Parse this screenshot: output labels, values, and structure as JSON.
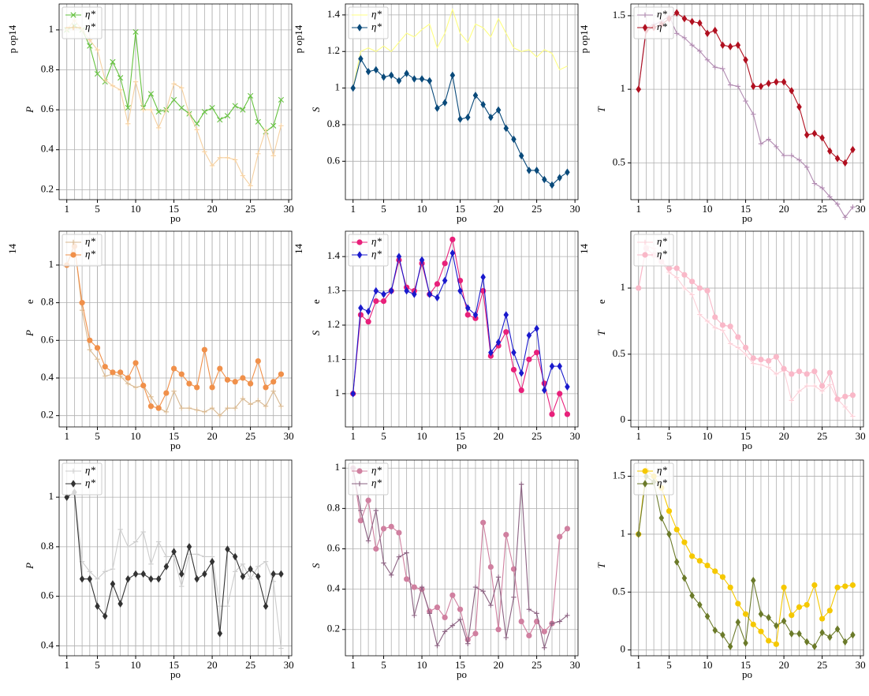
{
  "chart_data": [
    {
      "type": "line",
      "xlabel": "po",
      "ylabel": [
        "P",
        "p op14"
      ],
      "legend": "upper left",
      "grid": true,
      "x": [
        1,
        2,
        3,
        4,
        5,
        6,
        7,
        8,
        9,
        10,
        11,
        12,
        13,
        14,
        15,
        16,
        17,
        18,
        19,
        20,
        21,
        22,
        23,
        24,
        25,
        26,
        27,
        28,
        29
      ],
      "xlim": [
        0,
        30.4
      ],
      "xticks": [
        1,
        5,
        10,
        15,
        20,
        25,
        30
      ],
      "ylim": [
        0.15,
        1.13
      ],
      "yticks": [
        0.2,
        0.4,
        0.6,
        0.8,
        1
      ],
      "series": [
        {
          "name": "η*",
          "color": "#66c240",
          "marker": "x",
          "values": [
            1.0,
            1.02,
            1.0,
            0.92,
            0.78,
            0.74,
            0.84,
            0.76,
            0.61,
            0.99,
            0.61,
            0.68,
            0.59,
            0.6,
            0.65,
            0.61,
            0.58,
            0.53,
            0.59,
            0.61,
            0.55,
            0.57,
            0.62,
            0.6,
            0.67,
            0.54,
            0.49,
            0.52,
            0.65
          ]
        },
        {
          "name": "η*",
          "color": "#f5d0a0",
          "marker": "+",
          "values": [
            1.0,
            1.05,
            1.0,
            0.95,
            0.9,
            0.75,
            0.72,
            0.7,
            0.53,
            0.74,
            0.6,
            0.6,
            0.51,
            0.6,
            0.73,
            0.71,
            0.58,
            0.5,
            0.39,
            0.32,
            0.36,
            0.36,
            0.35,
            0.27,
            0.22,
            0.38,
            0.5,
            0.37,
            0.52
          ]
        }
      ]
    },
    {
      "type": "line",
      "xlabel": "po",
      "ylabel": [
        "S",
        "p op14"
      ],
      "legend": "upper left",
      "grid": true,
      "x": [
        1,
        2,
        3,
        4,
        5,
        6,
        7,
        8,
        9,
        10,
        11,
        12,
        13,
        14,
        15,
        16,
        17,
        18,
        19,
        20,
        21,
        22,
        23,
        24,
        25,
        26,
        27,
        28,
        29
      ],
      "xlim": [
        0,
        30.4
      ],
      "xticks": [
        1,
        5,
        10,
        15,
        20,
        25,
        30
      ],
      "ylim": [
        0.39,
        1.46
      ],
      "yticks": [
        0.6,
        0.8,
        1,
        1.2,
        1.4
      ],
      "series": [
        {
          "name": "η*",
          "color": "#ffff80",
          "marker": "none",
          "values": [
            1.0,
            1.2,
            1.22,
            1.2,
            1.23,
            1.2,
            1.25,
            1.3,
            1.28,
            1.32,
            1.35,
            1.22,
            1.3,
            1.43,
            1.3,
            1.25,
            1.35,
            1.33,
            1.28,
            1.38,
            1.3,
            1.22,
            1.2,
            1.21,
            1.17,
            1.21,
            1.19,
            1.1,
            1.12
          ]
        },
        {
          "name": "η*",
          "color": "#0a4a7a",
          "marker": "D",
          "values": [
            1.0,
            1.16,
            1.09,
            1.1,
            1.06,
            1.07,
            1.04,
            1.08,
            1.05,
            1.05,
            1.04,
            0.89,
            0.92,
            1.07,
            0.83,
            0.84,
            0.96,
            0.91,
            0.84,
            0.88,
            0.78,
            0.72,
            0.63,
            0.55,
            0.55,
            0.5,
            0.47,
            0.51,
            0.54
          ]
        }
      ]
    },
    {
      "type": "line",
      "xlabel": "po",
      "ylabel": [
        "T",
        "p op14"
      ],
      "legend": "upper left",
      "grid": true,
      "x": [
        1,
        2,
        3,
        4,
        5,
        6,
        7,
        8,
        9,
        10,
        11,
        12,
        13,
        14,
        15,
        16,
        17,
        18,
        19,
        20,
        21,
        22,
        23,
        24,
        25,
        26,
        27,
        28,
        29
      ],
      "xlim": [
        0,
        30.4
      ],
      "xticks": [
        1,
        5,
        10,
        15,
        20,
        25,
        30
      ],
      "ylim": [
        0.25,
        1.58
      ],
      "yticks": [
        0.5,
        1,
        1.5
      ],
      "series": [
        {
          "name": "η*",
          "color": "#b08ab0",
          "marker": "+",
          "values": [
            1.0,
            1.42,
            1.44,
            1.46,
            1.5,
            1.38,
            1.35,
            1.3,
            1.26,
            1.2,
            1.15,
            1.14,
            1.03,
            1.02,
            0.92,
            0.83,
            0.63,
            0.66,
            0.61,
            0.55,
            0.55,
            0.52,
            0.47,
            0.36,
            0.33,
            0.27,
            0.22,
            0.13,
            0.2
          ]
        },
        {
          "name": "η*",
          "color": "#b01020",
          "marker": "D",
          "values": [
            1.0,
            1.4,
            1.42,
            1.44,
            1.48,
            1.52,
            1.48,
            1.46,
            1.45,
            1.38,
            1.4,
            1.3,
            1.29,
            1.3,
            1.2,
            1.02,
            1.02,
            1.04,
            1.05,
            1.05,
            0.99,
            0.88,
            0.69,
            0.7,
            0.67,
            0.58,
            0.53,
            0.5,
            0.59
          ]
        }
      ]
    },
    {
      "type": "line",
      "xlabel": "po",
      "ylabel": [
        "P",
        "e",
        "14"
      ],
      "legend": "upper left",
      "grid": true,
      "x": [
        1,
        2,
        3,
        4,
        5,
        6,
        7,
        8,
        9,
        10,
        11,
        12,
        13,
        14,
        15,
        16,
        17,
        18,
        19,
        20,
        21,
        22,
        23,
        24,
        25,
        26,
        27,
        28,
        29
      ],
      "xlim": [
        0,
        30.4
      ],
      "xticks": [
        1,
        5,
        10,
        15,
        20,
        25,
        30
      ],
      "ylim": [
        0.14,
        1.18
      ],
      "yticks": [
        0.2,
        0.4,
        0.6,
        0.8,
        1
      ],
      "series": [
        {
          "name": "η*",
          "color": "#d8b890",
          "marker": "+",
          "values": [
            1.0,
            1.12,
            0.76,
            0.55,
            0.5,
            0.41,
            0.42,
            0.41,
            0.37,
            0.35,
            0.36,
            0.3,
            0.24,
            0.22,
            0.33,
            0.24,
            0.24,
            0.23,
            0.22,
            0.24,
            0.2,
            0.24,
            0.24,
            0.29,
            0.26,
            0.28,
            0.25,
            0.33,
            0.25
          ]
        },
        {
          "name": "η*",
          "color": "#f0904a",
          "marker": "o",
          "values": [
            1.0,
            1.1,
            0.8,
            0.6,
            0.56,
            0.46,
            0.43,
            0.43,
            0.4,
            0.48,
            0.36,
            0.25,
            0.24,
            0.32,
            0.45,
            0.42,
            0.37,
            0.35,
            0.55,
            0.35,
            0.45,
            0.39,
            0.38,
            0.4,
            0.37,
            0.49,
            0.35,
            0.38,
            0.42
          ]
        }
      ]
    },
    {
      "type": "line",
      "xlabel": "po",
      "ylabel": [
        "S",
        "e",
        "14"
      ],
      "legend": "upper left",
      "grid": true,
      "x": [
        1,
        2,
        3,
        4,
        5,
        6,
        7,
        8,
        9,
        10,
        11,
        12,
        13,
        14,
        15,
        16,
        17,
        18,
        19,
        20,
        21,
        22,
        23,
        24,
        25,
        26,
        27,
        28,
        29
      ],
      "xlim": [
        0,
        30.4
      ],
      "xticks": [
        1,
        5,
        10,
        15,
        20,
        25,
        30
      ],
      "ylim": [
        0.903,
        1.474
      ],
      "yticks": [
        1,
        1.1,
        1.2,
        1.3,
        1.4
      ],
      "series": [
        {
          "name": "η*",
          "color": "#e8207a",
          "marker": "o",
          "values": [
            1.0,
            1.23,
            1.21,
            1.27,
            1.27,
            1.3,
            1.39,
            1.31,
            1.3,
            1.38,
            1.29,
            1.32,
            1.38,
            1.45,
            1.33,
            1.23,
            1.22,
            1.3,
            1.11,
            1.14,
            1.18,
            1.07,
            1.01,
            1.1,
            1.12,
            1.03,
            0.94,
            1.0,
            0.94
          ]
        },
        {
          "name": "η*",
          "color": "#1a1acc",
          "marker": "D",
          "values": [
            1.0,
            1.25,
            1.24,
            1.3,
            1.29,
            1.3,
            1.4,
            1.3,
            1.29,
            1.39,
            1.29,
            1.28,
            1.33,
            1.41,
            1.3,
            1.25,
            1.23,
            1.34,
            1.12,
            1.15,
            1.23,
            1.12,
            1.06,
            1.17,
            1.19,
            1.01,
            1.08,
            1.08,
            1.02
          ]
        }
      ]
    },
    {
      "type": "line",
      "xlabel": "po",
      "ylabel": [
        "T",
        "e",
        "14"
      ],
      "legend": "upper left",
      "grid": true,
      "x": [
        1,
        2,
        3,
        4,
        5,
        6,
        7,
        8,
        9,
        10,
        11,
        12,
        13,
        14,
        15,
        16,
        17,
        18,
        19,
        20,
        21,
        22,
        23,
        24,
        25,
        26,
        27,
        28,
        29
      ],
      "xlim": [
        0,
        30.4
      ],
      "xticks": [
        1,
        5,
        10,
        15,
        20,
        25,
        30
      ],
      "ylim": [
        -0.05,
        1.43
      ],
      "yticks": [
        0,
        0.5,
        1
      ],
      "series": [
        {
          "name": "η*",
          "color": "#fcd0d8",
          "marker": "+",
          "values": [
            1.0,
            1.32,
            1.3,
            1.2,
            1.12,
            1.08,
            1.0,
            0.95,
            0.8,
            0.75,
            0.7,
            0.68,
            0.58,
            0.55,
            0.5,
            0.43,
            0.42,
            0.4,
            0.35,
            0.38,
            0.15,
            0.22,
            0.26,
            0.26,
            0.22,
            0.27,
            0.16,
            0.1,
            0.03
          ]
        },
        {
          "name": "η*",
          "color": "#f9b8c8",
          "marker": "o",
          "values": [
            1.0,
            1.3,
            1.25,
            1.2,
            1.15,
            1.15,
            1.1,
            1.05,
            1.0,
            0.98,
            0.78,
            0.72,
            0.71,
            0.63,
            0.55,
            0.47,
            0.46,
            0.45,
            0.48,
            0.39,
            0.35,
            0.37,
            0.35,
            0.37,
            0.26,
            0.36,
            0.16,
            0.18,
            0.19
          ]
        }
      ]
    },
    {
      "type": "line",
      "xlabel": "po",
      "ylabel": [
        "P"
      ],
      "legend": "upper left",
      "grid": true,
      "x": [
        1,
        2,
        3,
        4,
        5,
        6,
        7,
        8,
        9,
        10,
        11,
        12,
        13,
        14,
        15,
        16,
        17,
        18,
        19,
        20,
        21,
        22,
        23,
        24,
        25,
        26,
        27,
        28,
        29
      ],
      "xlim": [
        0,
        30.4
      ],
      "xticks": [
        1,
        5,
        10,
        15,
        20,
        25,
        30
      ],
      "ylim": [
        0.36,
        1.15
      ],
      "yticks": [
        0.4,
        0.6,
        0.8,
        1
      ],
      "series": [
        {
          "name": "η*",
          "color": "#cccccc",
          "marker": "+",
          "values": [
            1.0,
            1.02,
            0.74,
            0.7,
            0.67,
            0.7,
            0.71,
            0.87,
            0.8,
            0.82,
            0.86,
            0.73,
            0.82,
            0.76,
            0.76,
            0.64,
            0.77,
            0.77,
            0.76,
            0.76,
            0.56,
            0.56,
            0.7,
            0.73,
            0.67,
            0.72,
            0.74,
            0.66,
            0.39
          ]
        },
        {
          "name": "η*",
          "color": "#333333",
          "marker": "D",
          "values": [
            1.0,
            1.02,
            0.67,
            0.67,
            0.56,
            0.52,
            0.65,
            0.57,
            0.67,
            0.69,
            0.69,
            0.67,
            0.67,
            0.72,
            0.78,
            0.69,
            0.8,
            0.67,
            0.69,
            0.74,
            0.45,
            0.79,
            0.76,
            0.68,
            0.71,
            0.68,
            0.56,
            0.69,
            0.69
          ]
        }
      ]
    },
    {
      "type": "line",
      "xlabel": "po",
      "ylabel": [
        "S"
      ],
      "legend": "upper left",
      "grid": true,
      "x": [
        1,
        2,
        3,
        4,
        5,
        6,
        7,
        8,
        9,
        10,
        11,
        12,
        13,
        14,
        15,
        16,
        17,
        18,
        19,
        20,
        21,
        22,
        23,
        24,
        25,
        26,
        27,
        28,
        29
      ],
      "xlim": [
        0,
        30.4
      ],
      "xticks": [
        1,
        5,
        10,
        15,
        20,
        25,
        30
      ],
      "ylim": [
        0.07,
        1.04
      ],
      "yticks": [
        0.2,
        0.4,
        0.6,
        0.8,
        1
      ],
      "series": [
        {
          "name": "η*",
          "color": "#d080a0",
          "marker": "o",
          "values": [
            1.0,
            0.74,
            0.84,
            0.6,
            0.7,
            0.71,
            0.68,
            0.45,
            0.41,
            0.4,
            0.29,
            0.31,
            0.26,
            0.37,
            0.3,
            0.15,
            0.18,
            0.73,
            0.51,
            0.2,
            0.67,
            0.5,
            0.24,
            0.17,
            0.24,
            0.19,
            0.23,
            0.66,
            0.7
          ]
        },
        {
          "name": "η*",
          "color": "#8a6080",
          "marker": "+",
          "values": [
            1.0,
            0.79,
            0.64,
            0.79,
            0.53,
            0.47,
            0.56,
            0.58,
            0.27,
            0.41,
            0.28,
            0.12,
            0.19,
            0.22,
            0.25,
            0.13,
            0.41,
            0.39,
            0.32,
            0.46,
            0.16,
            0.36,
            0.92,
            0.3,
            0.28,
            0.11,
            0.23,
            0.24,
            0.27
          ]
        }
      ]
    },
    {
      "type": "line",
      "xlabel": "po",
      "ylabel": [
        "T"
      ],
      "legend": "upper left",
      "grid": true,
      "x": [
        1,
        2,
        3,
        4,
        5,
        6,
        7,
        8,
        9,
        10,
        11,
        12,
        13,
        14,
        15,
        16,
        17,
        18,
        19,
        20,
        21,
        22,
        23,
        24,
        25,
        26,
        27,
        28,
        29
      ],
      "xlim": [
        0,
        30.4
      ],
      "xticks": [
        1,
        5,
        10,
        15,
        20,
        25,
        30
      ],
      "ylim": [
        -0.05,
        1.64
      ],
      "yticks": [
        0,
        0.5,
        1,
        1.5
      ],
      "series": [
        {
          "name": "η*",
          "color": "#f5c800",
          "marker": "o",
          "values": [
            1.0,
            1.55,
            1.5,
            1.4,
            1.2,
            1.04,
            0.93,
            0.81,
            0.77,
            0.73,
            0.68,
            0.63,
            0.54,
            0.4,
            0.31,
            0.22,
            0.16,
            0.08,
            0.05,
            0.54,
            0.3,
            0.37,
            0.39,
            0.56,
            0.27,
            0.34,
            0.54,
            0.55,
            0.56
          ]
        },
        {
          "name": "η*",
          "color": "#6b7a2a",
          "marker": "D",
          "values": [
            1.0,
            1.5,
            1.45,
            1.14,
            1.0,
            0.76,
            0.62,
            0.47,
            0.39,
            0.29,
            0.17,
            0.13,
            0.03,
            0.24,
            0.06,
            0.6,
            0.31,
            0.28,
            0.21,
            0.25,
            0.14,
            0.14,
            0.07,
            0.03,
            0.15,
            0.11,
            0.18,
            0.07,
            0.13
          ]
        }
      ]
    }
  ]
}
